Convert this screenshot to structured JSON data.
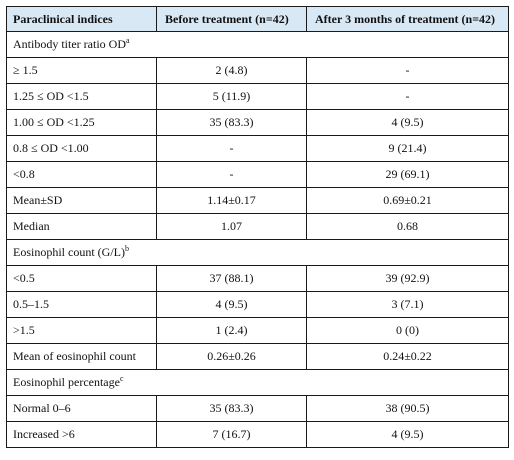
{
  "headers": [
    "Paraclinical indices",
    "Before treatment (n=42)",
    "After 3 months of treatment (n=42)"
  ],
  "sections": [
    {
      "title": "Antibody titer ratio OD",
      "sup": "a",
      "rows": [
        [
          "≥ 1.5",
          "2 (4.8)",
          "-"
        ],
        [
          "1.25 ≤  OD <1.5",
          "5 (11.9)",
          "-"
        ],
        [
          "1.00 ≤  OD <1.25",
          "35 (83.3)",
          "4 (9.5)"
        ],
        [
          "0.8 ≤  OD <1.00",
          "-",
          "9 (21.4)"
        ],
        [
          "<0.8",
          "-",
          "29 (69.1)"
        ],
        [
          "Mean±SD",
          "1.14±0.17",
          "0.69±0.21"
        ],
        [
          "Median",
          "1.07",
          "0.68"
        ]
      ]
    },
    {
      "title": "Eosinophil count (G/L)",
      "sup": "b",
      "rows": [
        [
          "<0.5",
          "37 (88.1)",
          "39 (92.9)"
        ],
        [
          "0.5–1.5",
          "4 (9.5)",
          "3 (7.1)"
        ],
        [
          ">1.5",
          "1 (2.4)",
          "0 (0)"
        ],
        [
          "Mean of eosinophil count",
          "0.26±0.26",
          "0.24±0.22"
        ]
      ]
    },
    {
      "title": "Eosinophil percentage",
      "sup": "c",
      "rows": [
        [
          "Normal 0–6",
          "35 (83.3)",
          "38 (90.5)"
        ],
        [
          "Increased >6",
          "7 (16.7)",
          "4 (9.5)"
        ]
      ]
    }
  ]
}
